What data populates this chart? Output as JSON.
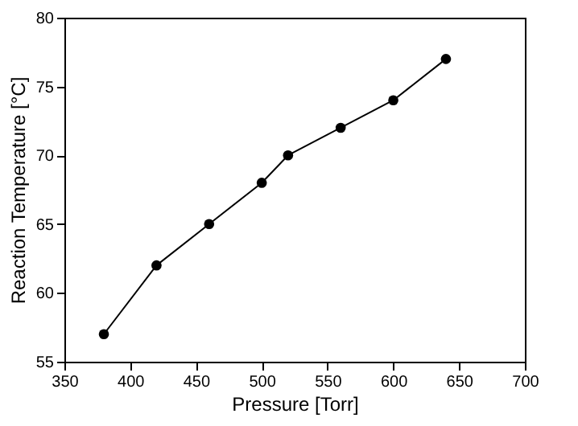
{
  "chart_data": {
    "type": "line",
    "xlabel": "Pressure [Torr]",
    "ylabel": "Reaction Temperature [°C]",
    "x": [
      380,
      420,
      460,
      500,
      520,
      560,
      600,
      640
    ],
    "series": [
      {
        "color": "#000000",
        "values": [
          57,
          62,
          65,
          68,
          70,
          72,
          74,
          77
        ]
      }
    ],
    "xlim": [
      350,
      700
    ],
    "xticks": [
      350,
      400,
      450,
      500,
      550,
      600,
      650,
      700
    ],
    "ylim": [
      55,
      80
    ],
    "yticks": [
      55,
      60,
      65,
      70,
      75,
      80
    ],
    "grid": false,
    "marker": "circle",
    "line_style": "solid"
  }
}
